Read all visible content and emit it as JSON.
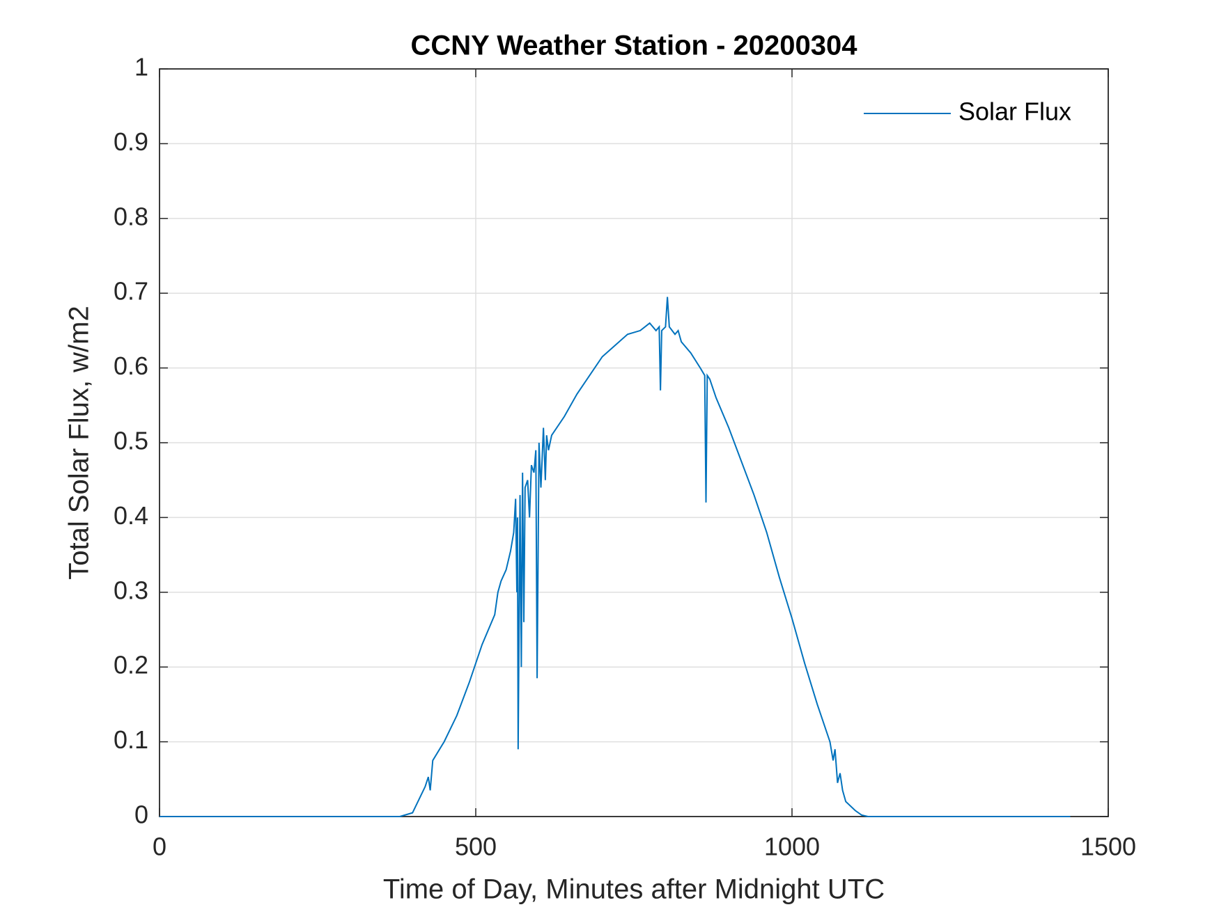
{
  "chart_data": {
    "type": "line",
    "title": "CCNY Weather Station - 20200304",
    "xlabel": "Time of Day, Minutes after Midnight UTC",
    "ylabel": "Total Solar Flux, w/m2",
    "xlim": [
      0,
      1500
    ],
    "xticks": [
      0,
      500,
      1000,
      1500
    ],
    "ylim": [
      0,
      1
    ],
    "yticks": [
      0,
      0.1,
      0.2,
      0.3,
      0.4,
      0.5,
      0.6,
      0.7,
      0.8,
      0.9,
      1
    ],
    "grid": true,
    "legend": "northeast",
    "series": [
      {
        "name": "Solar Flux",
        "color": "#0072bd",
        "x": [
          0,
          380,
          400,
          420,
          425,
          428,
          432,
          450,
          470,
          490,
          510,
          530,
          535,
          540,
          548,
          555,
          560,
          563,
          565,
          566,
          567,
          570,
          572,
          574,
          576,
          578,
          582,
          585,
          588,
          592,
          595,
          597,
          600,
          603,
          607,
          610,
          612,
          615,
          620,
          640,
          660,
          680,
          700,
          720,
          740,
          760,
          775,
          785,
          790,
          792,
          794,
          800,
          803,
          806,
          815,
          820,
          825,
          840,
          855,
          862,
          864,
          866,
          870,
          880,
          900,
          920,
          940,
          960,
          980,
          1000,
          1020,
          1040,
          1060,
          1065,
          1068,
          1072,
          1076,
          1080,
          1085,
          1100,
          1110,
          1120,
          1440
        ],
        "values": [
          0,
          0,
          0.005,
          0.04,
          0.053,
          0.035,
          0.075,
          0.1,
          0.135,
          0.18,
          0.23,
          0.27,
          0.3,
          0.315,
          0.33,
          0.355,
          0.38,
          0.425,
          0.3,
          0.4,
          0.09,
          0.43,
          0.2,
          0.46,
          0.26,
          0.44,
          0.45,
          0.4,
          0.47,
          0.46,
          0.49,
          0.185,
          0.5,
          0.44,
          0.52,
          0.45,
          0.51,
          0.49,
          0.51,
          0.535,
          0.565,
          0.59,
          0.615,
          0.63,
          0.645,
          0.65,
          0.66,
          0.65,
          0.655,
          0.57,
          0.65,
          0.655,
          0.695,
          0.655,
          0.645,
          0.65,
          0.635,
          0.62,
          0.6,
          0.59,
          0.42,
          0.59,
          0.585,
          0.56,
          0.52,
          0.475,
          0.43,
          0.38,
          0.32,
          0.265,
          0.205,
          0.15,
          0.1,
          0.075,
          0.09,
          0.045,
          0.058,
          0.035,
          0.02,
          0.008,
          0.002,
          0,
          0
        ]
      }
    ]
  }
}
